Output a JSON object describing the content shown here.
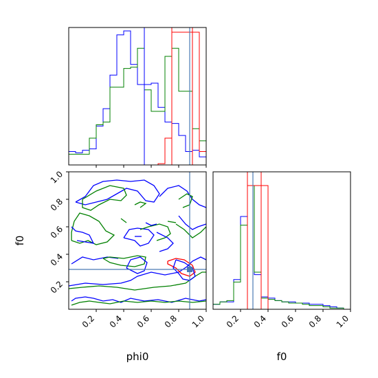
{
  "chart_data": {
    "type": "corner",
    "parameters": [
      "phi0",
      "f0"
    ],
    "axis_labels": {
      "x_left": "phi0",
      "x_right": "f0",
      "y_left": "f0"
    },
    "ranges": {
      "phi0": [
        0.0,
        1.0
      ],
      "f0": [
        0.0,
        1.0
      ]
    },
    "ticks": {
      "phi0": [
        0.2,
        0.4,
        0.6,
        0.8,
        1.0
      ],
      "f0": [
        0.2,
        0.4,
        0.6,
        0.8,
        1.0
      ]
    },
    "tick_labels": {
      "phi0": [
        "0.2",
        "0.4",
        "0.6",
        "0.8",
        "1.0"
      ],
      "f0": [
        "0.2",
        "0.4",
        "0.6",
        "0.8",
        "1.0"
      ]
    },
    "truth": {
      "phi0": 0.88,
      "f0": 0.29,
      "color": "#4a7ab5"
    },
    "series": [
      {
        "color": "#0000ff",
        "phi0_hist": [
          0.1,
          0.09,
          0.11,
          0.12,
          0.29,
          0.42,
          0.67,
          0.97,
          1.0,
          0.75,
          0.6,
          0.6,
          0.61,
          0.43,
          0.32,
          0.31,
          0.22,
          0.1,
          0.11,
          0.06
        ],
        "f0_hist": [
          0.04,
          0.06,
          0.06,
          0.24,
          0.75,
          1.0,
          0.28,
          0.1,
          0.09,
          0.07,
          0.06,
          0.06,
          0.05,
          0.05,
          0.04,
          0.04,
          0.03,
          0.02,
          0.01,
          0.0
        ]
      },
      {
        "color": "#008000",
        "phi0_hist": [
          0.08,
          0.08,
          0.08,
          0.2,
          0.3,
          0.32,
          0.58,
          0.58,
          0.72,
          0.73,
          0.87,
          0.56,
          0.4,
          0.4,
          0.81,
          0.87,
          0.55,
          0.55,
          0.27,
          0.18
        ],
        "f0_hist": [
          0.04,
          0.06,
          0.07,
          0.22,
          0.68,
          1.0,
          0.3,
          0.09,
          0.08,
          0.07,
          0.06,
          0.05,
          0.05,
          0.04,
          0.03,
          0.03,
          0.02,
          0.01,
          0.01,
          0.0
        ]
      },
      {
        "color": "#ff0000",
        "phi0_hist": [
          0,
          0,
          0,
          0,
          0,
          0,
          0,
          0,
          0,
          0,
          0,
          0,
          0,
          0.01,
          0.2,
          0.99,
          0.99,
          0.99,
          0.99,
          0.1
        ],
        "f0_hist": [
          0,
          0,
          0,
          0,
          0,
          1.0,
          1.0,
          1.0,
          0,
          0,
          0,
          0,
          0,
          0,
          0,
          0,
          0,
          0,
          0,
          0
        ]
      }
    ],
    "contours": [
      {
        "color": "#0000ff",
        "points": [
          [
            0.02,
            0.06
          ],
          [
            0.05,
            0.08
          ],
          [
            0.12,
            0.09
          ],
          [
            0.18,
            0.08
          ],
          [
            0.25,
            0.06
          ],
          [
            0.32,
            0.07
          ],
          [
            0.38,
            0.05
          ],
          [
            0.45,
            0.08
          ],
          [
            0.55,
            0.06
          ],
          [
            0.65,
            0.07
          ],
          [
            0.75,
            0.05
          ],
          [
            0.85,
            0.08
          ],
          [
            0.95,
            0.06
          ],
          [
            1.0,
            0.07
          ]
        ]
      },
      {
        "color": "#008000",
        "points": [
          [
            0.02,
            0.03
          ],
          [
            0.08,
            0.05
          ],
          [
            0.15,
            0.06
          ],
          [
            0.22,
            0.05
          ],
          [
            0.3,
            0.04
          ],
          [
            0.4,
            0.06
          ],
          [
            0.5,
            0.05
          ],
          [
            0.6,
            0.06
          ],
          [
            0.7,
            0.05
          ],
          [
            0.8,
            0.06
          ],
          [
            0.9,
            0.05
          ],
          [
            1.0,
            0.06
          ]
        ]
      },
      {
        "color": "#0000ff",
        "points": [
          [
            0.0,
            0.17
          ],
          [
            0.12,
            0.19
          ],
          [
            0.25,
            0.18
          ],
          [
            0.38,
            0.19
          ],
          [
            0.45,
            0.21
          ],
          [
            0.5,
            0.24
          ],
          [
            0.6,
            0.27
          ],
          [
            0.7,
            0.25
          ],
          [
            0.8,
            0.27
          ],
          [
            0.86,
            0.31
          ],
          [
            0.9,
            0.35
          ],
          [
            0.96,
            0.38
          ],
          [
            1.0,
            0.36
          ]
        ]
      },
      {
        "color": "#008000",
        "points": [
          [
            0.0,
            0.15
          ],
          [
            0.1,
            0.16
          ],
          [
            0.22,
            0.17
          ],
          [
            0.35,
            0.16
          ],
          [
            0.48,
            0.14
          ],
          [
            0.62,
            0.16
          ],
          [
            0.74,
            0.17
          ],
          [
            0.85,
            0.19
          ],
          [
            0.92,
            0.24
          ],
          [
            0.97,
            0.27
          ],
          [
            1.0,
            0.27
          ]
        ]
      },
      {
        "color": "#0000ff",
        "points": [
          [
            0.02,
            0.33
          ],
          [
            0.1,
            0.38
          ],
          [
            0.18,
            0.36
          ],
          [
            0.28,
            0.38
          ],
          [
            0.36,
            0.37
          ]
        ]
      },
      {
        "color": "#008000",
        "points": [
          [
            0.25,
            0.37
          ],
          [
            0.3,
            0.34
          ],
          [
            0.38,
            0.32
          ],
          [
            0.48,
            0.31
          ],
          [
            0.55,
            0.33
          ],
          [
            0.56,
            0.38
          ],
          [
            0.5,
            0.39
          ],
          [
            0.4,
            0.37
          ],
          [
            0.3,
            0.38
          ],
          [
            0.25,
            0.37
          ]
        ]
      },
      {
        "color": "#0000ff",
        "points": [
          [
            0.42,
            0.3
          ],
          [
            0.5,
            0.26
          ],
          [
            0.55,
            0.28
          ],
          [
            0.57,
            0.34
          ],
          [
            0.52,
            0.38
          ],
          [
            0.45,
            0.36
          ],
          [
            0.42,
            0.3
          ]
        ]
      },
      {
        "color": "#008000",
        "points": [
          [
            0.02,
            0.5
          ],
          [
            0.08,
            0.48
          ],
          [
            0.14,
            0.5
          ],
          [
            0.2,
            0.47
          ],
          [
            0.28,
            0.49
          ],
          [
            0.33,
            0.54
          ],
          [
            0.27,
            0.57
          ],
          [
            0.22,
            0.64
          ],
          [
            0.15,
            0.68
          ],
          [
            0.08,
            0.7
          ],
          [
            0.04,
            0.64
          ],
          [
            0.02,
            0.56
          ],
          [
            0.02,
            0.5
          ]
        ]
      },
      {
        "color": "#0000ff",
        "points": [
          [
            0.02,
            0.6
          ],
          [
            0.05,
            0.57
          ],
          [
            0.1,
            0.56
          ],
          [
            0.15,
            0.54
          ],
          [
            0.18,
            0.48
          ],
          [
            0.12,
            0.49
          ],
          [
            0.06,
            0.5
          ]
        ]
      },
      {
        "color": "#0000ff",
        "points": [
          [
            0.05,
            0.78
          ],
          [
            0.12,
            0.82
          ],
          [
            0.18,
            0.9
          ],
          [
            0.25,
            0.93
          ],
          [
            0.35,
            0.94
          ],
          [
            0.45,
            0.93
          ],
          [
            0.55,
            0.94
          ],
          [
            0.62,
            0.9
          ],
          [
            0.66,
            0.84
          ],
          [
            0.62,
            0.78
          ],
          [
            0.56,
            0.79
          ],
          [
            0.5,
            0.86
          ],
          [
            0.42,
            0.88
          ],
          [
            0.35,
            0.84
          ],
          [
            0.28,
            0.8
          ],
          [
            0.2,
            0.78
          ],
          [
            0.12,
            0.76
          ],
          [
            0.05,
            0.78
          ]
        ]
      },
      {
        "color": "#008000",
        "points": [
          [
            0.1,
            0.8
          ],
          [
            0.2,
            0.86
          ],
          [
            0.3,
            0.9
          ],
          [
            0.4,
            0.88
          ],
          [
            0.42,
            0.83
          ],
          [
            0.38,
            0.79
          ],
          [
            0.3,
            0.8
          ],
          [
            0.22,
            0.76
          ],
          [
            0.16,
            0.72
          ],
          [
            0.1,
            0.74
          ],
          [
            0.1,
            0.8
          ]
        ]
      },
      {
        "color": "#0000ff",
        "points": [
          [
            0.66,
            0.82
          ],
          [
            0.72,
            0.88
          ],
          [
            0.8,
            0.9
          ],
          [
            0.86,
            0.86
          ],
          [
            0.9,
            0.8
          ],
          [
            0.95,
            0.76
          ],
          [
            1.0,
            0.74
          ]
        ]
      },
      {
        "color": "#008000",
        "points": [
          [
            0.8,
            0.8
          ],
          [
            0.86,
            0.84
          ],
          [
            0.9,
            0.82
          ],
          [
            0.88,
            0.76
          ],
          [
            0.83,
            0.74
          ]
        ]
      },
      {
        "color": "#008000",
        "points": [
          [
            0.48,
            0.76
          ],
          [
            0.52,
            0.78
          ],
          [
            0.56,
            0.77
          ],
          [
            0.52,
            0.74
          ]
        ]
      },
      {
        "color": "#0000ff",
        "points": [
          [
            0.8,
            0.68
          ],
          [
            0.85,
            0.62
          ],
          [
            0.9,
            0.58
          ],
          [
            0.94,
            0.6
          ],
          [
            1.0,
            0.62
          ]
        ]
      },
      {
        "color": "#008000",
        "points": [
          [
            0.78,
            0.62
          ],
          [
            0.84,
            0.58
          ],
          [
            0.9,
            0.52
          ],
          [
            0.96,
            0.56
          ],
          [
            1.0,
            0.6
          ]
        ]
      },
      {
        "color": "#0000ff",
        "points": [
          [
            0.4,
            0.52
          ],
          [
            0.48,
            0.5
          ],
          [
            0.52,
            0.46
          ],
          [
            0.58,
            0.48
          ],
          [
            0.62,
            0.54
          ],
          [
            0.58,
            0.58
          ],
          [
            0.5,
            0.59
          ],
          [
            0.44,
            0.58
          ],
          [
            0.4,
            0.52
          ]
        ]
      },
      {
        "color": "#008000",
        "points": [
          [
            0.52,
            0.58
          ],
          [
            0.58,
            0.6
          ],
          [
            0.66,
            0.62
          ],
          [
            0.72,
            0.6
          ],
          [
            0.74,
            0.55
          ],
          [
            0.7,
            0.52
          ],
          [
            0.64,
            0.5
          ]
        ]
      },
      {
        "color": "#0000ff",
        "points": [
          [
            0.56,
            0.63
          ],
          [
            0.6,
            0.61
          ],
          [
            0.64,
            0.62
          ]
        ]
      },
      {
        "color": "#0000ff",
        "points": [
          [
            0.64,
            0.56
          ],
          [
            0.72,
            0.52
          ],
          [
            0.76,
            0.48
          ],
          [
            0.72,
            0.44
          ],
          [
            0.66,
            0.42
          ]
        ]
      },
      {
        "color": "#008000",
        "points": [
          [
            0.38,
            0.66
          ],
          [
            0.42,
            0.63
          ]
        ]
      },
      {
        "color": "#0000ff",
        "points": [
          [
            0.48,
            0.53
          ],
          [
            0.53,
            0.53
          ]
        ]
      },
      {
        "color": "#008000",
        "points": [
          [
            0.72,
            0.64
          ],
          [
            0.78,
            0.63
          ]
        ]
      },
      {
        "color": "#ff0000",
        "points": [
          [
            0.72,
            0.35
          ],
          [
            0.78,
            0.37
          ],
          [
            0.84,
            0.36
          ],
          [
            0.9,
            0.32
          ],
          [
            0.92,
            0.27
          ],
          [
            0.88,
            0.24
          ],
          [
            0.82,
            0.26
          ],
          [
            0.78,
            0.3
          ],
          [
            0.72,
            0.33
          ],
          [
            0.72,
            0.35
          ]
        ]
      },
      {
        "color": "#0000ff",
        "points": [
          [
            0.78,
            0.36
          ],
          [
            0.84,
            0.34
          ],
          [
            0.9,
            0.3
          ],
          [
            0.92,
            0.24
          ],
          [
            0.88,
            0.21
          ],
          [
            0.83,
            0.22
          ],
          [
            0.8,
            0.26
          ],
          [
            0.76,
            0.3
          ],
          [
            0.78,
            0.36
          ]
        ]
      }
    ]
  }
}
